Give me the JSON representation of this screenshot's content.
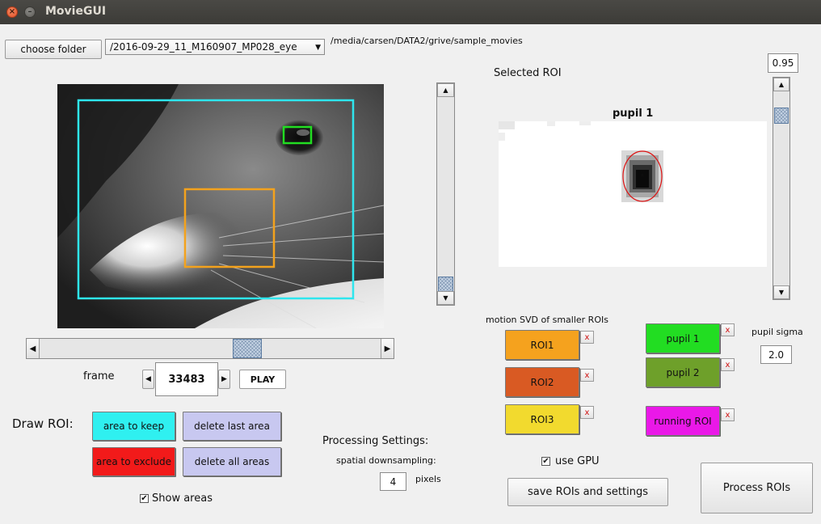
{
  "window": {
    "title": "MovieGUI",
    "close_glyph": "×",
    "min_glyph": "–"
  },
  "toolbar": {
    "choose_folder_label": "choose folder",
    "movie_select_value": "/2016-09-29_11_M160907_MP028_eye",
    "folder_path": "/media/carsen/DATA2/grive/sample_movies"
  },
  "frame_controls": {
    "frame_label": "frame",
    "frame_value": "33483",
    "play_label": "PLAY",
    "slider_position": 0.62
  },
  "draw_roi": {
    "label": "Draw ROI:",
    "keep_label": "area to keep",
    "exclude_label": "area to exclude",
    "delete_last_label": "delete last area",
    "delete_all_label": "delete all areas",
    "show_areas_label": "Show areas",
    "show_areas_checked": "✔"
  },
  "processing": {
    "title": "Processing Settings:",
    "downsampling_label": "spatial downsampling:",
    "downsampling_value": "4",
    "units_label": "pixels"
  },
  "selected_roi": {
    "label": "Selected ROI",
    "plot_title": "pupil 1",
    "saturation_value": "0.95",
    "saturation_level": 0.95
  },
  "motion_svd": {
    "label": "motion SVD of smaller ROIs",
    "rois": [
      {
        "label": "ROI1",
        "color": "#f5a21e"
      },
      {
        "label": "ROI2",
        "color": "#d95a23"
      },
      {
        "label": "ROI3",
        "color": "#f2da2e"
      }
    ],
    "delete_glyph": "x"
  },
  "pupil": {
    "rois": [
      {
        "label": "pupil 1",
        "color": "#22dd22"
      },
      {
        "label": "pupil 2",
        "color": "#6ea02a"
      }
    ],
    "sigma_label": "pupil sigma",
    "sigma_value": "2.0"
  },
  "running": {
    "label": "running ROI",
    "color": "#ea18e8"
  },
  "gpu": {
    "label": "use GPU",
    "checked": "✔"
  },
  "actions": {
    "save_label": "save ROIs and settings",
    "process_label": "Process ROIs"
  },
  "colors": {
    "keep": "#2ff0f0",
    "exclude": "#f21a1a",
    "delete": "#c8c8f0",
    "roi_frame_cyan": "#2ee6ee",
    "roi_frame_orange": "#f3a21d",
    "roi_frame_green": "#22dd22",
    "pupil_fit": "#dd1111"
  }
}
